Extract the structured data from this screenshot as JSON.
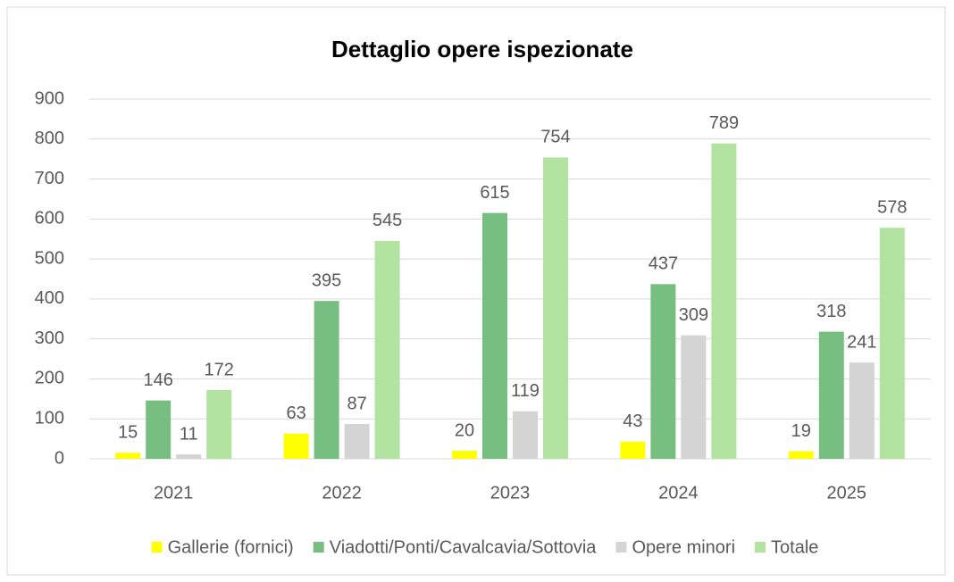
{
  "chart_data": {
    "type": "bar",
    "title": "Dettaglio opere ispezionate",
    "categories": [
      "2021",
      "2022",
      "2023",
      "2024",
      "2025"
    ],
    "series": [
      {
        "name": "Gallerie (fornici)",
        "color": "#ffff00",
        "values": [
          15,
          63,
          20,
          43,
          19
        ]
      },
      {
        "name": "Viadotti/Ponti/Cavalcavia/Sottovia",
        "color": "#77bf80",
        "values": [
          146,
          395,
          615,
          437,
          318
        ]
      },
      {
        "name": "Opere minori",
        "color": "#d4d4d4",
        "values": [
          11,
          87,
          119,
          309,
          241
        ]
      },
      {
        "name": "Totale",
        "color": "#b3e3a0",
        "values": [
          172,
          545,
          754,
          789,
          578
        ]
      }
    ],
    "ylim": [
      0,
      900
    ],
    "yticks": [
      0,
      100,
      200,
      300,
      400,
      500,
      600,
      700,
      800,
      900
    ],
    "grid": true,
    "legend": "bottom"
  }
}
